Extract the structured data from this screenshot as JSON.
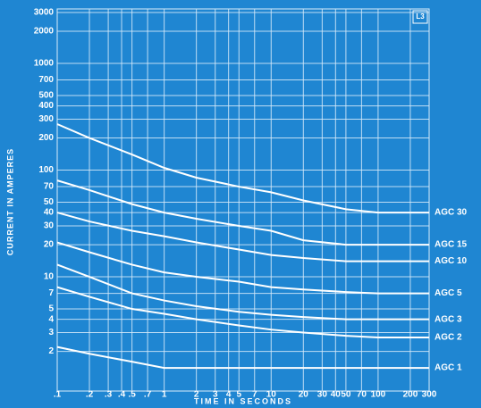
{
  "chart_data": {
    "type": "line",
    "annotation": "L3",
    "y_label": "CURRENT IN AMPERES",
    "x_label": "TIME IN SECONDS",
    "log_x": true,
    "log_y": true,
    "grid": true,
    "xlim": [
      0.1,
      300
    ],
    "ylim": [
      0.85,
      3000
    ],
    "xticks": [
      {
        "value": 0.1,
        "label": ".1"
      },
      {
        "value": 0.2,
        "label": ".2"
      },
      {
        "value": 0.3,
        "label": ".3"
      },
      {
        "value": 0.4,
        "label": ".4"
      },
      {
        "value": 0.5,
        "label": ".5"
      },
      {
        "value": 0.7,
        "label": ".7"
      },
      1,
      2,
      3,
      4,
      5,
      7,
      10,
      20,
      30,
      40,
      50,
      70,
      100,
      200,
      300
    ],
    "yticks": [
      2,
      3,
      4,
      5,
      7,
      10,
      20,
      30,
      40,
      50,
      70,
      100,
      200,
      300,
      400,
      500,
      700,
      1000,
      2000,
      3000
    ],
    "x": [
      0.1,
      0.2,
      0.5,
      1,
      2,
      5,
      10,
      20,
      50,
      100,
      300
    ],
    "series": [
      {
        "name": "AGC 30",
        "color": "#ffffff",
        "values": [
          270,
          200,
          140,
          105,
          85,
          70,
          62,
          52,
          43,
          40,
          40
        ]
      },
      {
        "name": "AGC 15",
        "color": "#ffffff",
        "values": [
          80,
          65,
          48,
          40,
          35,
          30,
          27,
          22,
          20,
          20,
          20
        ]
      },
      {
        "name": "AGC 10",
        "color": "#ffffff",
        "values": [
          40,
          33,
          27,
          24,
          21,
          18,
          16,
          15,
          14,
          14,
          14
        ]
      },
      {
        "name": "AGC 5",
        "color": "#ffffff",
        "values": [
          21,
          17,
          13,
          11,
          10,
          9,
          8,
          7.6,
          7.2,
          7,
          7
        ]
      },
      {
        "name": "AGC 3",
        "color": "#ffffff",
        "values": [
          13,
          10,
          7,
          6,
          5.3,
          4.7,
          4.4,
          4.2,
          4,
          4,
          4
        ]
      },
      {
        "name": "AGC 2",
        "color": "#ffffff",
        "values": [
          8,
          6.5,
          5,
          4.5,
          4,
          3.5,
          3.2,
          3,
          2.8,
          2.7,
          2.7
        ]
      },
      {
        "name": "AGC 1",
        "color": "#ffffff",
        "values": [
          2.2,
          1.9,
          1.6,
          1.4,
          1.4,
          1.4,
          1.4,
          1.4,
          1.4,
          1.4,
          1.4
        ]
      }
    ]
  }
}
